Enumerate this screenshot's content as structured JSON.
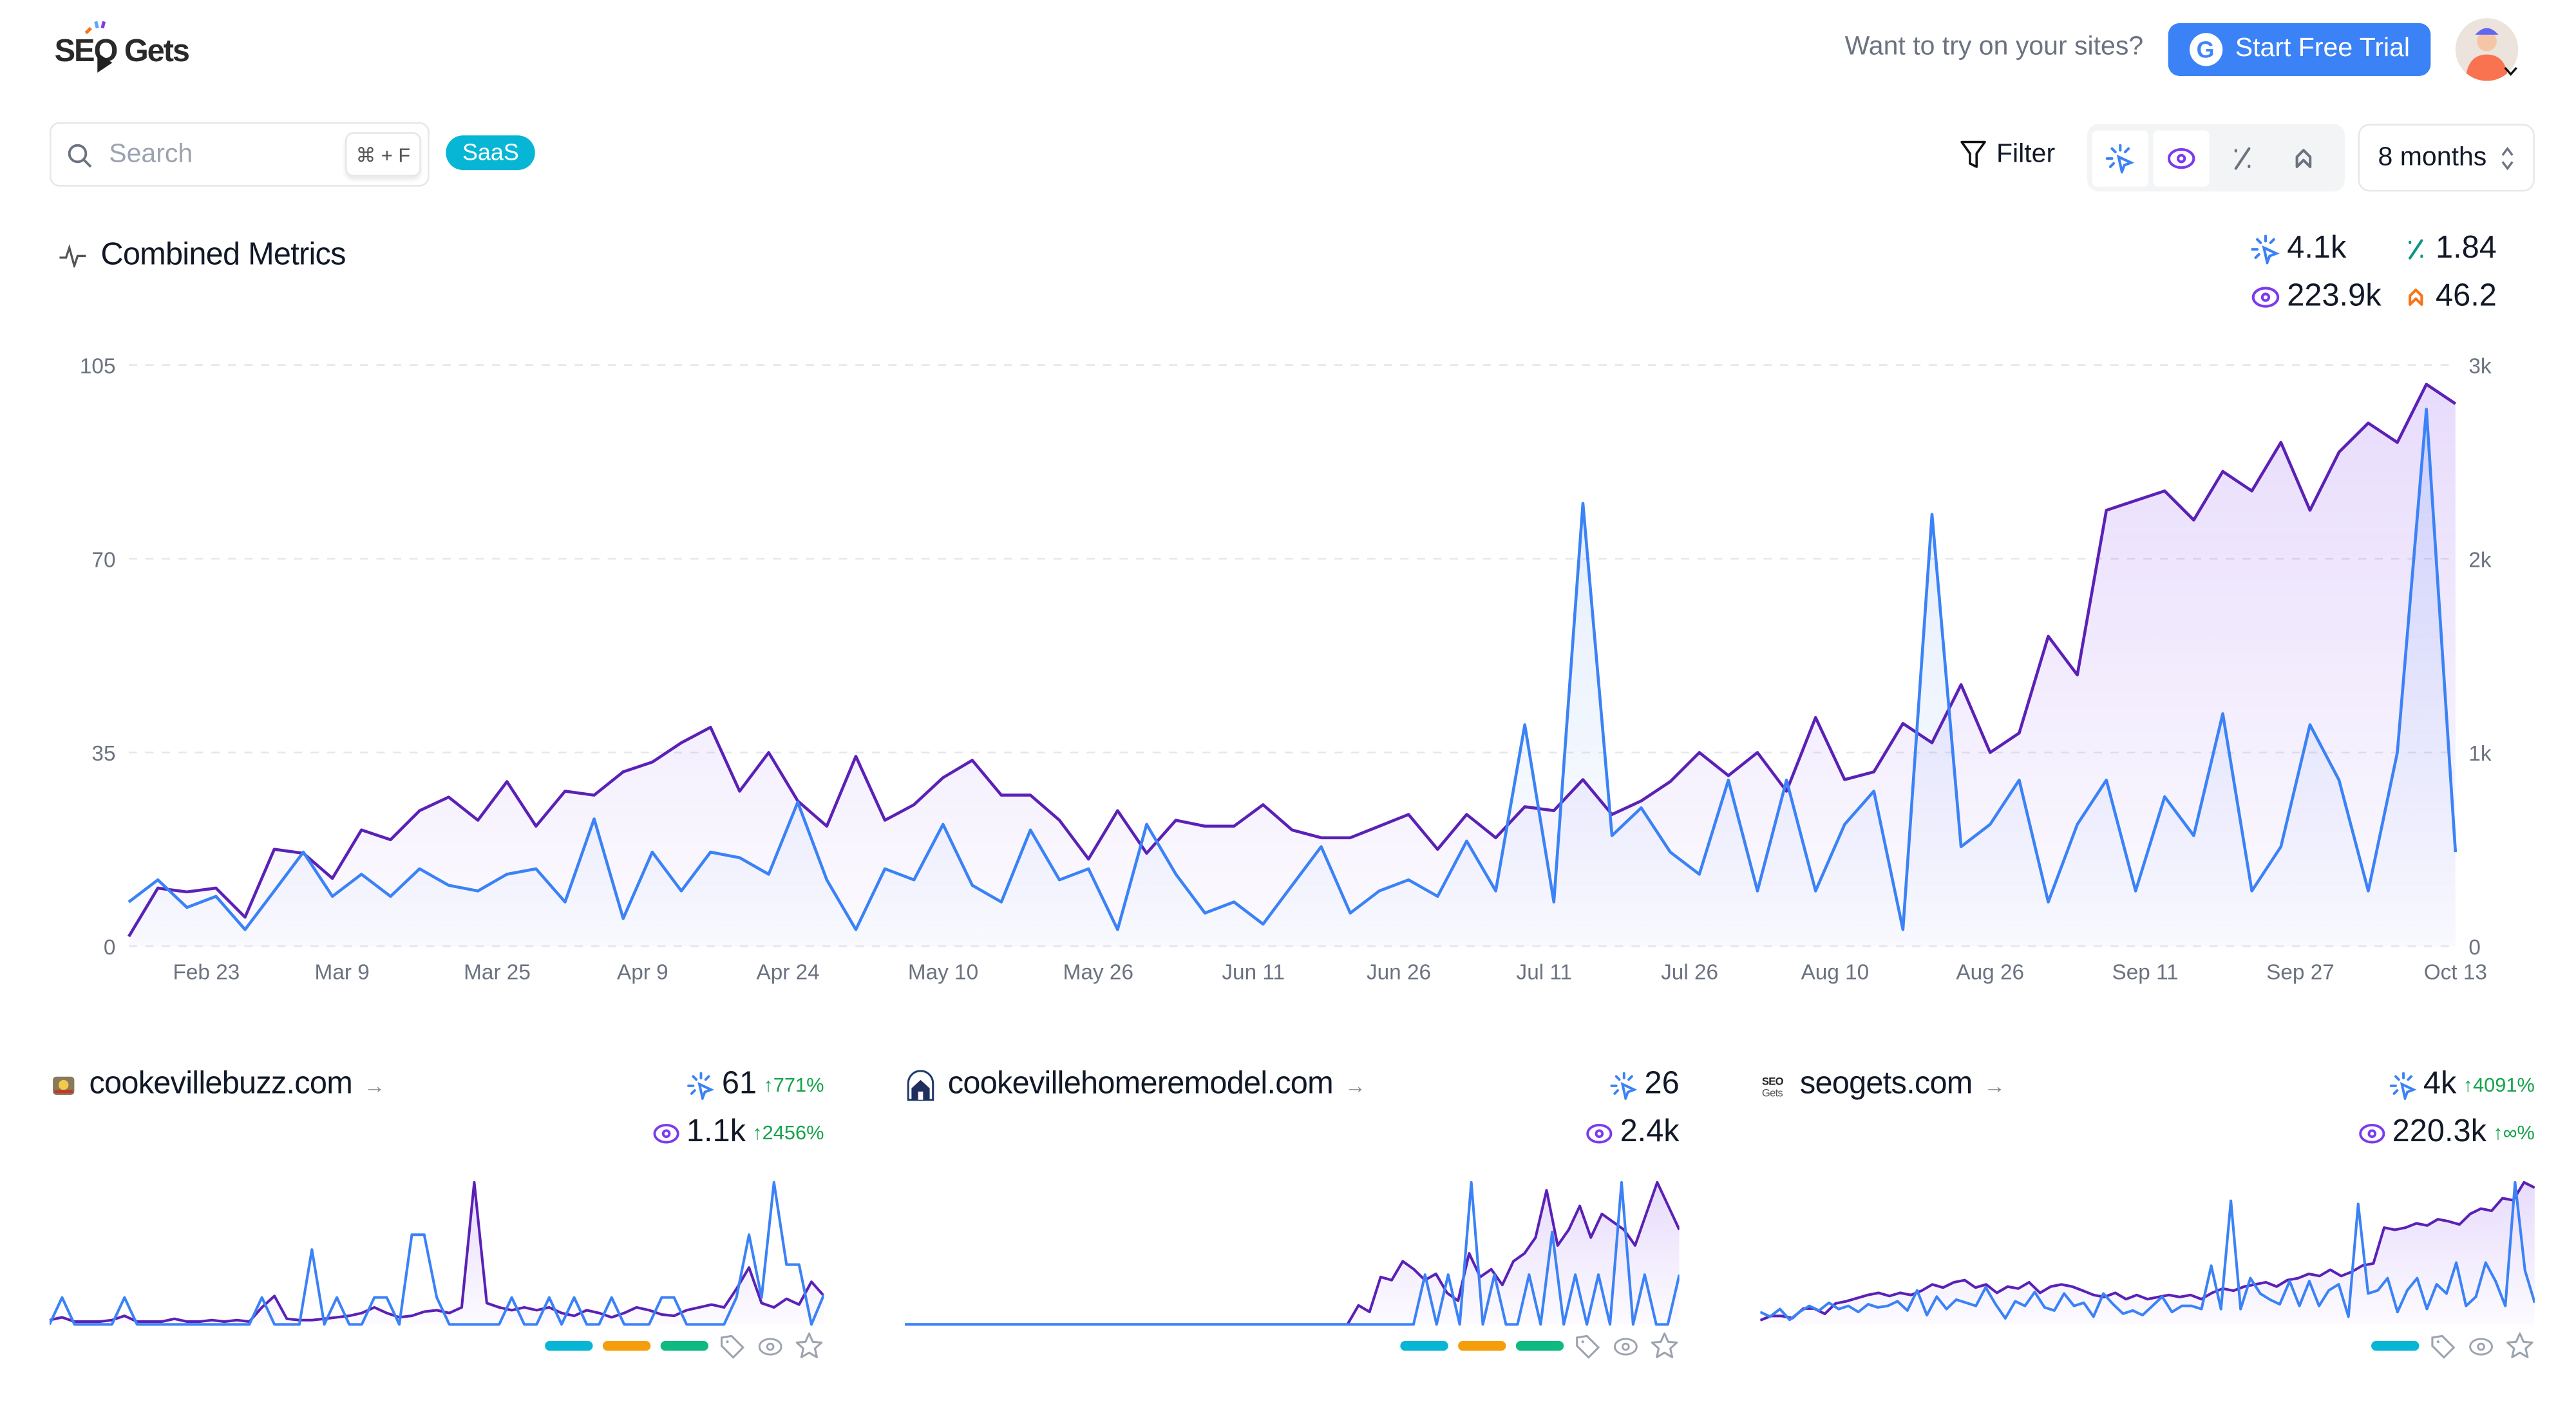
{
  "header": {
    "logo_text": "SEO Gets",
    "try_text": "Want to try on your sites?",
    "trial_button": "Start Free Trial"
  },
  "toolbar": {
    "search_placeholder": "Search",
    "search_value": "",
    "shortcut": "⌘ + F",
    "tag": "SaaS",
    "filter_label": "Filter",
    "metric_toggles": [
      {
        "icon": "clicks-icon",
        "active": true
      },
      {
        "icon": "impressions-eye-icon",
        "active": true
      },
      {
        "icon": "ctr-percent-icon",
        "active": false
      },
      {
        "icon": "position-icon",
        "active": false
      }
    ],
    "range": "8 months"
  },
  "colors": {
    "clicks": "#3b82f6",
    "impressions": "#5b21b6",
    "ctr": "#0d9488",
    "position": "#f97316",
    "tag_cyan": "#06b6d4",
    "tag_amber": "#f59e0b",
    "tag_green": "#10b981",
    "trend_up": "#16a34a"
  },
  "combined": {
    "title": "Combined Metrics",
    "clicks": "4.1k",
    "ctr": "1.84",
    "impressions": "223.9k",
    "position": "46.2"
  },
  "chart_data": {
    "type": "line",
    "left_axis": {
      "ticks": [
        "105",
        "70",
        "35",
        "0"
      ],
      "range": [
        0,
        105
      ],
      "series": "clicks"
    },
    "right_axis": {
      "ticks": [
        "3k",
        "2k",
        "1k",
        "0"
      ],
      "range": [
        0,
        3000
      ],
      "series": "impressions"
    },
    "x_ticks": [
      "Feb 23",
      "Mar 9",
      "Mar 25",
      "Apr 9",
      "Apr 24",
      "May 10",
      "May 26",
      "Jun 11",
      "Jun 26",
      "Jul 11",
      "Jul 26",
      "Aug 10",
      "Aug 26",
      "Sep 11",
      "Sep 27",
      "Oct 13"
    ],
    "grid": true,
    "x": [
      "Feb 15",
      "Feb 18",
      "Feb 21",
      "Feb 24",
      "Feb 27",
      "Mar 2",
      "Mar 5",
      "Mar 8",
      "Mar 11",
      "Mar 14",
      "Mar 17",
      "Mar 20",
      "Mar 23",
      "Mar 26",
      "Mar 29",
      "Apr 1",
      "Apr 4",
      "Apr 7",
      "Apr 10",
      "Apr 13",
      "Apr 16",
      "Apr 19",
      "Apr 22",
      "Apr 25",
      "Apr 28",
      "May 1",
      "May 4",
      "May 7",
      "May 10",
      "May 13",
      "May 16",
      "May 19",
      "May 22",
      "May 25",
      "May 28",
      "May 31",
      "Jun 3",
      "Jun 6",
      "Jun 9",
      "Jun 12",
      "Jun 15",
      "Jun 18",
      "Jun 21",
      "Jun 24",
      "Jun 27",
      "Jun 30",
      "Jul 3",
      "Jul 6",
      "Jul 9",
      "Jul 12",
      "Jul 15",
      "Jul 18",
      "Jul 21",
      "Jul 24",
      "Jul 27",
      "Jul 30",
      "Aug 2",
      "Aug 5",
      "Aug 8",
      "Aug 11",
      "Aug 14",
      "Aug 17",
      "Aug 20",
      "Aug 23",
      "Aug 26",
      "Aug 29",
      "Sep 1",
      "Sep 4",
      "Sep 7",
      "Sep 10",
      "Sep 13",
      "Sep 16",
      "Sep 19",
      "Sep 22",
      "Sep 25",
      "Sep 28",
      "Oct 1",
      "Oct 4",
      "Oct 7",
      "Oct 10",
      "Oct 13"
    ],
    "series": [
      {
        "key": "clicks",
        "axis": "left",
        "values": [
          8,
          12,
          7,
          9,
          3,
          10,
          17,
          9,
          13,
          9,
          14,
          11,
          10,
          13,
          14,
          8,
          23,
          5,
          17,
          10,
          17,
          16,
          13,
          26,
          12,
          3,
          14,
          12,
          22,
          11,
          8,
          21,
          12,
          14,
          3,
          22,
          13,
          6,
          8,
          4,
          11,
          18,
          6,
          10,
          12,
          9,
          19,
          10,
          40,
          8,
          80,
          20,
          25,
          17,
          13,
          30,
          10,
          30,
          10,
          22,
          28,
          3,
          78,
          18,
          22,
          30,
          8,
          22,
          30,
          10,
          27,
          20,
          42,
          10,
          18,
          40,
          30,
          10,
          35,
          97,
          17
        ]
      },
      {
        "key": "impressions",
        "axis": "right",
        "values": [
          50,
          300,
          280,
          300,
          150,
          500,
          480,
          350,
          600,
          550,
          700,
          770,
          650,
          850,
          620,
          800,
          780,
          900,
          950,
          1050,
          1130,
          800,
          1000,
          750,
          620,
          980,
          650,
          730,
          870,
          960,
          780,
          780,
          650,
          450,
          700,
          480,
          650,
          620,
          620,
          730,
          600,
          560,
          560,
          620,
          680,
          500,
          680,
          560,
          720,
          700,
          860,
          680,
          750,
          850,
          1000,
          880,
          1000,
          800,
          1180,
          860,
          900,
          1150,
          1050,
          1350,
          1000,
          1100,
          1600,
          1400,
          2250,
          2300,
          2350,
          2200,
          2450,
          2350,
          2600,
          2250,
          2550,
          2700,
          2600,
          2900,
          2800
        ]
      }
    ]
  },
  "sites": [
    {
      "domain": "cookevillebuzz.com",
      "clicks": "61",
      "clicks_change": "771%",
      "impressions": "1.1k",
      "impressions_change": "2456%",
      "tags": [
        "#06b6d4",
        "#f59e0b",
        "#10b981"
      ],
      "spark_clicks": [
        0,
        18,
        0,
        0,
        0,
        0,
        18,
        0,
        0,
        0,
        0,
        0,
        0,
        0,
        0,
        0,
        0,
        18,
        0,
        0,
        0,
        50,
        0,
        18,
        0,
        0,
        18,
        18,
        0,
        60,
        60,
        18,
        0,
        0,
        0,
        0,
        0,
        18,
        0,
        0,
        18,
        0,
        18,
        0,
        0,
        18,
        0,
        0,
        0,
        18,
        18,
        0,
        0,
        0,
        0,
        18,
        60,
        18,
        95,
        40,
        40,
        0,
        20
      ],
      "spark_impr": [
        3,
        5,
        2,
        2,
        2,
        3,
        6,
        2,
        2,
        2,
        4,
        2,
        2,
        3,
        2,
        3,
        2,
        12,
        20,
        4,
        3,
        3,
        4,
        5,
        6,
        8,
        12,
        8,
        5,
        6,
        9,
        10,
        8,
        12,
        100,
        15,
        12,
        10,
        12,
        10,
        12,
        8,
        6,
        10,
        8,
        5,
        8,
        12,
        10,
        7,
        6,
        10,
        12,
        14,
        12,
        25,
        40,
        15,
        12,
        18,
        14,
        30,
        20
      ]
    },
    {
      "domain": "cookevillehomeremodel.com",
      "clicks": "26",
      "clicks_change": "",
      "impressions": "2.4k",
      "impressions_change": "",
      "tags": [
        "#06b6d4",
        "#f59e0b",
        "#10b981"
      ],
      "spark_clicks": [
        0,
        0,
        0,
        0,
        0,
        0,
        0,
        0,
        0,
        0,
        0,
        0,
        0,
        0,
        0,
        0,
        0,
        0,
        0,
        0,
        0,
        0,
        0,
        0,
        0,
        0,
        0,
        0,
        0,
        0,
        0,
        0,
        0,
        0,
        0,
        0,
        0,
        0,
        0,
        0,
        0,
        0,
        0,
        0,
        0,
        35,
        0,
        35,
        0,
        100,
        0,
        35,
        0,
        0,
        35,
        0,
        65,
        0,
        35,
        0,
        35,
        0,
        100,
        0,
        35,
        0,
        0,
        35
      ],
      "spark_impr": [
        0,
        0,
        0,
        0,
        0,
        0,
        0,
        0,
        0,
        0,
        0,
        0,
        0,
        0,
        0,
        0,
        0,
        0,
        0,
        0,
        0,
        0,
        0,
        0,
        0,
        0,
        0,
        0,
        0,
        0,
        0,
        0,
        0,
        0,
        0,
        0,
        0,
        0,
        0,
        0,
        0,
        12,
        8,
        30,
        28,
        40,
        35,
        28,
        32,
        20,
        15,
        45,
        30,
        35,
        25,
        40,
        45,
        55,
        85,
        50,
        60,
        75,
        55,
        70,
        65,
        60,
        50,
        70,
        90,
        75,
        60
      ],
      "spark_impr_scale": 100
    },
    {
      "domain": "seogets.com",
      "clicks": "4k",
      "clicks_change": "4091%",
      "impressions": "220.3k",
      "impressions_change": "∞%",
      "tags": [
        "#06b6d4"
      ],
      "spark_clicks": [
        8,
        5,
        10,
        3,
        8,
        12,
        9,
        14,
        10,
        12,
        8,
        13,
        11,
        12,
        15,
        9,
        22,
        6,
        18,
        10,
        16,
        14,
        12,
        24,
        13,
        4,
        15,
        12,
        21,
        11,
        9,
        20,
        12,
        14,
        5,
        20,
        13,
        7,
        9,
        6,
        12,
        18,
        8,
        12,
        12,
        10,
        38,
        10,
        80,
        10,
        30,
        20,
        16,
        13,
        28,
        12,
        28,
        12,
        22,
        26,
        5,
        78,
        20,
        22,
        30,
        8,
        22,
        30,
        10,
        26,
        20,
        40,
        12,
        18,
        40,
        28,
        12,
        92,
        35,
        14
      ],
      "spark_impr": [
        4,
        8,
        8,
        6,
        15,
        15,
        10,
        20,
        22,
        25,
        28,
        30,
        27,
        30,
        28,
        32,
        38,
        35,
        40,
        42,
        35,
        38,
        30,
        36,
        34,
        40,
        30,
        36,
        38,
        36,
        32,
        28,
        26,
        30,
        24,
        28,
        24,
        26,
        28,
        26,
        28,
        24,
        30,
        34,
        32,
        36,
        38,
        40,
        36,
        42,
        44,
        48,
        46,
        52,
        46,
        50,
        56,
        58,
        92,
        90,
        92,
        96,
        94,
        100,
        98,
        95,
        105,
        110,
        108,
        120,
        118,
        135,
        130
      ]
    }
  ]
}
